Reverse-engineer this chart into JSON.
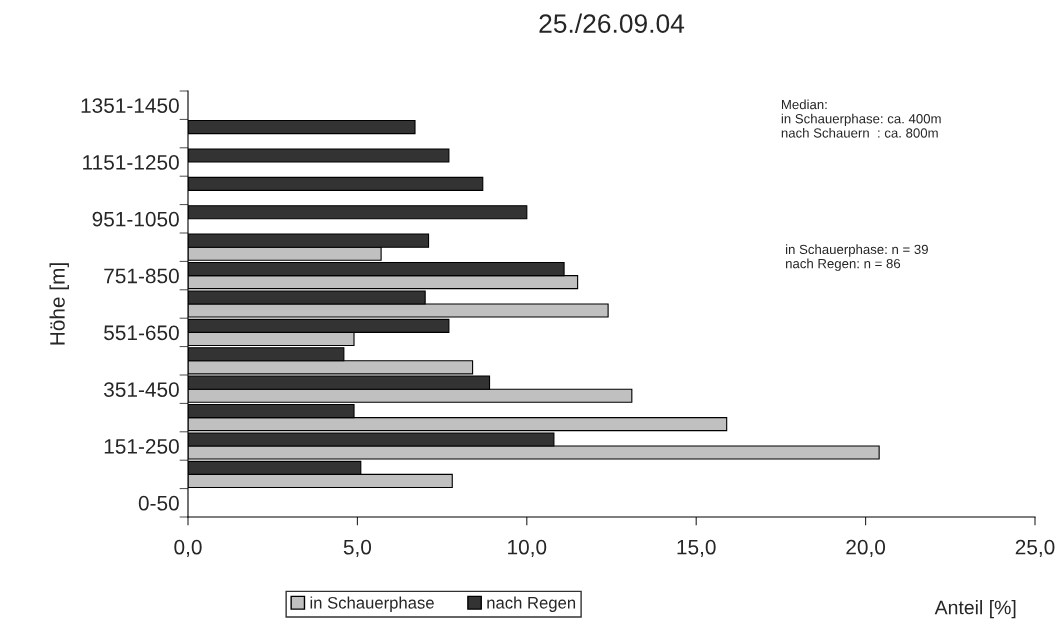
{
  "chart_data": {
    "type": "bar",
    "orientation": "horizontal",
    "title": "25./26.09.04",
    "xlabel": "Anteil [%]",
    "ylabel": "Höhe [m]",
    "categories": [
      "1351-1450",
      null,
      "1151-1250",
      null,
      "951-1050",
      null,
      "751-850",
      null,
      "551-650",
      null,
      "351-450",
      null,
      "151-250",
      null,
      "0-50"
    ],
    "series": [
      {
        "name": "in Schauerphase",
        "color": "#c0c0c0",
        "values": [
          null,
          null,
          null,
          null,
          null,
          5.7,
          11.5,
          12.4,
          4.9,
          8.4,
          13.1,
          15.9,
          20.4,
          7.8,
          null
        ]
      },
      {
        "name": "nach Regen",
        "color": "#333333",
        "values": [
          null,
          6.7,
          7.7,
          8.7,
          10.0,
          7.1,
          11.1,
          7.0,
          7.7,
          4.6,
          8.9,
          4.9,
          10.8,
          5.1,
          null
        ]
      }
    ],
    "xlim": [
      0,
      25
    ],
    "xticks": [
      {
        "value": 0,
        "label": "0,0"
      },
      {
        "value": 5,
        "label": "5,0"
      },
      {
        "value": 10,
        "label": "10,0"
      },
      {
        "value": 15,
        "label": "15,0"
      },
      {
        "value": 20,
        "label": "20,0"
      },
      {
        "value": 25,
        "label": "25,0"
      }
    ],
    "grid": false,
    "legend": "bottom",
    "annotations": [
      "Median:\nin Schauerphase: ca. 400m\nnach Schauern  : ca. 800m",
      "in Schauerphase: n = 39\nnach Regen: n = 86"
    ]
  }
}
